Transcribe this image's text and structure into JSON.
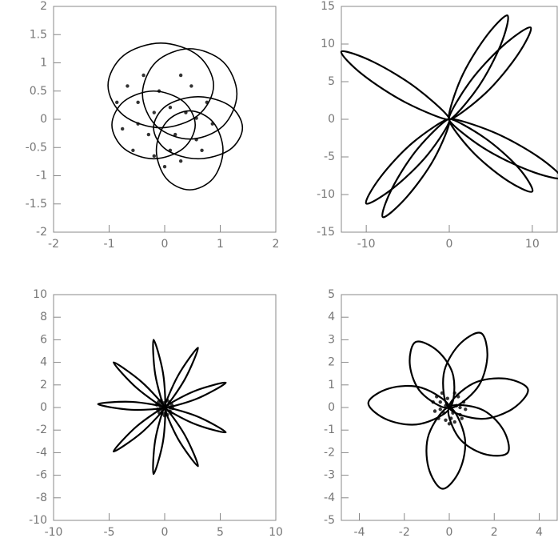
{
  "chart_data": [
    {
      "type": "line",
      "color": "#000000",
      "xlim": [
        -2,
        2
      ],
      "ylim": [
        -2,
        2
      ],
      "xticks": [
        -2,
        -1,
        0,
        1,
        2
      ],
      "yticks": [
        -2,
        -1.5,
        -1,
        -0.5,
        0,
        0.5,
        1,
        1.5,
        2
      ],
      "series": [
        {
          "x": [
            0.88,
            0.6,
            -0.07,
            -0.74,
            -1.02,
            -0.74,
            -0.07,
            0.6
          ],
          "values": [
            0.6,
            1.13,
            1.35,
            1.13,
            0.6,
            0.07,
            -0.15,
            0.07
          ]
        },
        {
          "x": [
            1.3,
            1.05,
            0.45,
            -0.15,
            -0.4,
            -0.15,
            0.45,
            1.05
          ],
          "values": [
            0.45,
            1.02,
            1.25,
            1.02,
            0.45,
            -0.12,
            -0.35,
            -0.12
          ]
        },
        {
          "x": [
            1.4,
            1.17,
            0.6,
            0.03,
            -0.2,
            0.03,
            0.6,
            1.17
          ],
          "values": [
            -0.15,
            0.24,
            0.4,
            0.24,
            -0.15,
            -0.54,
            -0.7,
            -0.54
          ]
        },
        {
          "x": [
            1.05,
            0.87,
            0.45,
            0.03,
            -0.15,
            0.03,
            0.45,
            0.87
          ],
          "values": [
            -0.55,
            -0.05,
            0.15,
            -0.05,
            -0.55,
            -1.05,
            -1.25,
            -1.05
          ]
        },
        {
          "x": [
            0.55,
            0.33,
            -0.2,
            -0.73,
            -0.95,
            -0.73,
            -0.2,
            0.33
          ],
          "values": [
            -0.1,
            0.32,
            0.5,
            0.32,
            -0.1,
            -0.52,
            -0.7,
            -0.52
          ]
        }
      ],
      "scatter": {
        "x": [
          0.1,
          -0.48,
          0.57,
          -0.19,
          0.76,
          -0.76,
          0.29,
          -0.38,
          0.19,
          -0.57,
          0.48,
          0,
          -0.86,
          0.86,
          -0.1,
          0.38,
          -0.29,
          0.67,
          -0.67,
          0.1,
          -0.19,
          0.29,
          -0.48,
          0.57
        ],
        "values": [
          0.21,
          0.3,
          -0.36,
          -0.65,
          0.3,
          -0.17,
          0.78,
          0.78,
          -0.27,
          -0.55,
          0.59,
          -0.84,
          0.3,
          -0.08,
          0.5,
          0.12,
          -0.27,
          -0.55,
          0.59,
          -0.55,
          0.12,
          -0.74,
          -0.08,
          0.02
        ]
      }
    },
    {
      "type": "line",
      "color": "#000000",
      "xlim": [
        -13,
        13
      ],
      "ylim": [
        -15,
        15
      ],
      "xticks": [
        -10,
        0,
        10
      ],
      "yticks": [
        -15,
        -10,
        -5,
        0,
        5,
        10,
        15
      ],
      "series": [
        {
          "x": [
            0,
            -3.9,
            -9.1,
            -13,
            -10.4,
            -5.2
          ],
          "values": [
            0,
            4.1,
            7.6,
            9,
            5.9,
            2.2
          ]
        },
        {
          "x": [
            0,
            3.5,
            6.2,
            7,
            4.3,
            1.4
          ],
          "values": [
            0,
            4.3,
            9.9,
            13.8,
            10.8,
            5.4
          ]
        },
        {
          "x": [
            0,
            4.4,
            8.2,
            9.8,
            6.5,
            2.5
          ],
          "values": [
            0,
            3.5,
            8.5,
            12.2,
            9.8,
            5.0
          ]
        },
        {
          "x": [
            0,
            5.3,
            10.6,
            13.5,
            9.6,
            4.1
          ],
          "values": [
            0,
            -1.7,
            -4.9,
            -7.8,
            -6.8,
            -3.8
          ]
        },
        {
          "x": [
            0,
            4.3,
            8.3,
            10,
            6.8,
            2.7
          ],
          "values": [
            0,
            -2.5,
            -6.4,
            -9.6,
            -8.0,
            -4.2
          ]
        },
        {
          "x": [
            0,
            -1.8,
            -5.1,
            -8,
            -6.9,
            -3.8
          ],
          "values": [
            0,
            -5.2,
            -10.3,
            -13,
            -9.2,
            -3.9
          ]
        },
        {
          "x": [
            0,
            -2.6,
            -6.7,
            -10,
            -8.3,
            -4.4
          ],
          "values": [
            0,
            -4.7,
            -9.1,
            -11.2,
            -7.7,
            -3.1
          ]
        }
      ]
    },
    {
      "type": "line",
      "color": "#000000",
      "xlim": [
        -10,
        10
      ],
      "ylim": [
        -10,
        10
      ],
      "xticks": [
        -10,
        -5,
        0,
        5,
        10
      ],
      "yticks": [
        -10,
        -8,
        -6,
        -4,
        -2,
        0,
        2,
        4,
        6,
        8,
        10
      ],
      "series": [
        {
          "x": [
            0,
            -0.15,
            -1,
            -0.85
          ],
          "values": [
            0,
            3.06,
            6,
            2.94
          ]
        },
        {
          "x": [
            0,
            1.8,
            3,
            1.2
          ],
          "values": [
            0,
            2.48,
            5.3,
            2.82
          ]
        },
        {
          "x": [
            0,
            2.88,
            5.5,
            2.62
          ],
          "values": [
            0,
            0.77,
            2.2,
            1.43
          ]
        },
        {
          "x": [
            0,
            2.62,
            5.5,
            2.88
          ],
          "values": [
            0,
            -1.43,
            -2.2,
            -0.77
          ]
        },
        {
          "x": [
            0,
            1.2,
            3,
            1.8
          ],
          "values": [
            0,
            -2.78,
            -5.2,
            -2.42
          ]
        },
        {
          "x": [
            0,
            -0.85,
            -1,
            -0.15
          ],
          "values": [
            0,
            -2.89,
            -5.9,
            -3.01
          ]
        },
        {
          "x": [
            0,
            -2.53,
            -4.6,
            -2.07
          ],
          "values": [
            0,
            -1.68,
            -3.9,
            -2.22
          ]
        },
        {
          "x": [
            0,
            -2.98,
            -6,
            -3.02
          ],
          "values": [
            0,
            0.5,
            0.3,
            -0.2
          ]
        },
        {
          "x": [
            0,
            -2.07,
            -4.6,
            -2.53
          ],
          "values": [
            0,
            2.26,
            4,
            1.74
          ]
        }
      ],
      "scatter": {
        "x": [
          0.08,
          -0.4,
          0.48,
          -0.16,
          0.64,
          -0.64,
          0.24,
          -0.32,
          0.16,
          -0.48,
          0.4,
          0,
          -0.72,
          0.72,
          -0.08,
          0.32,
          -0.24,
          0.56,
          -0.56,
          0.08,
          -0.16,
          0.24,
          -0.4,
          0.48
        ],
        "values": [
          0.16,
          0.24,
          -0.32,
          -0.56,
          0.24,
          -0.16,
          0.64,
          0.64,
          -0.24,
          -0.48,
          0.48,
          -0.72,
          0.24,
          -0.08,
          0.4,
          0.08,
          -0.24,
          -0.48,
          0.48,
          -0.48,
          0.08,
          -0.64,
          -0.08,
          0
        ]
      }
    },
    {
      "type": "line",
      "color": "#000000",
      "xlim": [
        -4.8,
        4.8
      ],
      "ylim": [
        -5,
        5
      ],
      "xticks": [
        -4,
        -2,
        0,
        2,
        4
      ],
      "yticks": [
        -5,
        -4,
        -3,
        -2,
        -1,
        0,
        1,
        2,
        3,
        4,
        5
      ],
      "series": [
        {
          "x": [
            0,
            0.18,
            -0.51,
            -1.5,
            -1.75,
            -1.24
          ],
          "values": [
            0,
            1.39,
            2.5,
            2.9,
            1.86,
            0.65
          ]
        },
        {
          "x": [
            0,
            1.23,
            1.69,
            1.4,
            0.41,
            -0.25
          ],
          "values": [
            0,
            0.85,
            2.21,
            3.3,
            2.75,
            1.47
          ]
        },
        {
          "x": [
            0,
            1.41,
            2.78,
            3.5,
            2.48,
            1.05
          ],
          "values": [
            0,
            -0.5,
            -0.08,
            0.8,
            1.28,
            1.06
          ]
        },
        {
          "x": [
            0,
            0.42,
            1.52,
            2.6,
            2.38,
            1.4
          ],
          "values": [
            0,
            -1.33,
            -2.05,
            -2.0,
            -0.95,
            -0.07
          ]
        },
        {
          "x": [
            0,
            -0.91,
            -0.93,
            -0.3,
            0.47,
            0.69
          ],
          "values": [
            0,
            -1.19,
            -2.64,
            -3.6,
            -2.76,
            -1.33
          ]
        },
        {
          "x": [
            0,
            -1.22,
            -2.66,
            -3.6,
            -2.74,
            -1.3
          ],
          "values": [
            0,
            0.87,
            0.85,
            0.2,
            -0.55,
            -0.73
          ]
        }
      ],
      "scatter": {
        "x": [
          0.08,
          -0.4,
          0.48,
          -0.16,
          0.64,
          -0.64,
          0.24,
          -0.32,
          0.16,
          -0.48,
          0.4,
          0,
          -0.72,
          0.72,
          -0.08,
          0.32,
          -0.24,
          0.56,
          -0.56,
          0.08,
          -0.16,
          0.24,
          -0.4,
          0.48
        ],
        "values": [
          0.16,
          0.24,
          -0.32,
          -0.56,
          0.24,
          -0.16,
          0.64,
          0.64,
          -0.24,
          -0.48,
          0.48,
          -0.72,
          0.24,
          -0.08,
          0.4,
          0.08,
          -0.24,
          -0.48,
          0.48,
          -0.48,
          0.08,
          -0.64,
          -0.08,
          0
        ]
      }
    }
  ]
}
